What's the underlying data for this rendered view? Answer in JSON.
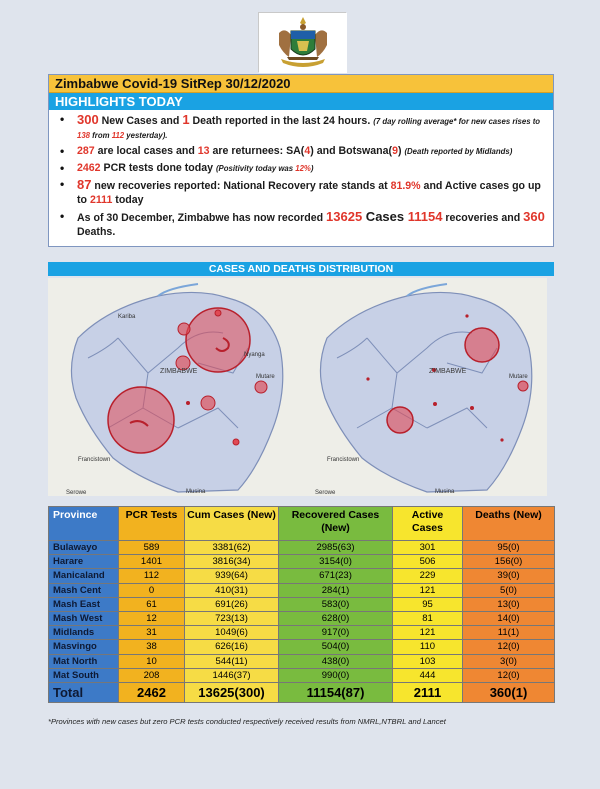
{
  "header": {
    "title": "Zimbabwe Covid-19 SitRep 30/12/2020",
    "highlights_label": "HIGHLIGHTS TODAY"
  },
  "highlights": {
    "b1": {
      "n1": "300",
      "t1": " New Cases and ",
      "n2": "1",
      "t2": " Death reported in the last 24 hours. ",
      "s1": "(7 day rolling average* for new cases rises to ",
      "n3": "138",
      "s2": " from ",
      "n4": "112",
      "s3": " yesterday)."
    },
    "b2": {
      "n1": "287",
      "t1": " are local cases and ",
      "n2": "13",
      "t2": " are returnees: SA(",
      "n3": "4",
      "t3": ") and Botswana(",
      "n4": "9",
      "t4": ") ",
      "s1": "(Death reported by Midlands)"
    },
    "b3": {
      "n1": "2462",
      "t1": " PCR tests done today ",
      "s1": "(Positivity today was ",
      "n2": "12%",
      "s2": ")"
    },
    "b4": {
      "n1": "87",
      "t1": " new recoveries reported: National Recovery rate stands at ",
      "n2": "81.9%",
      "t2": " and Active cases go up to ",
      "n3": "2111",
      "t3": " today"
    },
    "b5": {
      "t1": "As of 30 December, Zimbabwe has now recorded ",
      "n1": "13625",
      "t2": "  Cases ",
      "n2": "11154",
      "t3": " recoveries and ",
      "n3": "360",
      "t4": " Deaths."
    }
  },
  "distribution_label": "CASES AND DEATHS DISTRIBUTION",
  "maps": {
    "left_labels": {
      "country": "ZIMBABWE",
      "city1": "Francistown",
      "city2": "Serowe",
      "city3": "Musina",
      "city4": "Mutare",
      "city5": "Nyanga",
      "city6": "Kariba"
    },
    "right_labels": {
      "country": "ZIMBABWE",
      "city1": "Francistown",
      "city2": "Serowe",
      "city3": "Musina",
      "city4": "Mutare"
    }
  },
  "table": {
    "headers": [
      "Province",
      "PCR Tests",
      "Cum Cases (New)",
      "Recovered Cases (New)",
      "Active Cases",
      "Deaths (New)"
    ],
    "rows": [
      [
        "Bulawayo",
        "589",
        "3381(62)",
        "2985(63)",
        "301",
        "95(0)"
      ],
      [
        "Harare",
        "1401",
        "3816(34)",
        "3154(0)",
        "506",
        "156(0)"
      ],
      [
        "Manicaland",
        "112",
        "939(64)",
        "671(23)",
        "229",
        "39(0)"
      ],
      [
        "Mash Cent",
        "0",
        "410(31)",
        "284(1)",
        "121",
        "5(0)"
      ],
      [
        "Mash East",
        "61",
        "691(26)",
        "583(0)",
        "95",
        "13(0)"
      ],
      [
        "Mash West",
        "12",
        "723(13)",
        "628(0)",
        "81",
        "14(0)"
      ],
      [
        "Midlands",
        "31",
        "1049(6)",
        "917(0)",
        "121",
        "11(1)"
      ],
      [
        "Masvingo",
        "38",
        "626(16)",
        "504(0)",
        "110",
        "12(0)"
      ],
      [
        "Mat North",
        "10",
        "544(11)",
        "438(0)",
        "103",
        "3(0)"
      ],
      [
        "Mat South",
        "208",
        "1446(37)",
        "990(0)",
        "444",
        "12(0)"
      ]
    ],
    "total": [
      "Total",
      "2462",
      "13625(300)",
      "11154(87)",
      "2111",
      "360(1)"
    ]
  },
  "footnote": "*Provinces  with new cases but zero  PCR tests conducted respectively received results from NMRL,NTBRL and Lancet",
  "colors": {
    "title": "#f7c23a",
    "banner": "#1aa2e3",
    "highlight_number": "#e0362b",
    "bubble": "#e04a55"
  }
}
